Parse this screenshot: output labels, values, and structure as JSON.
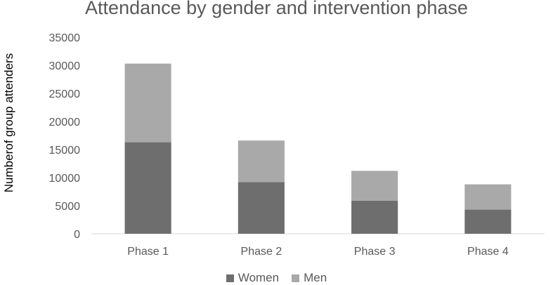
{
  "colors": {
    "women": "#6e6e6e",
    "men": "#a9a9a9",
    "axis": "#d9d9d9"
  },
  "chart_data": {
    "type": "bar",
    "stacked": true,
    "title": "Attendance by gender and intervention phase",
    "ylabel": "Numberof group attenders",
    "xlabel": "",
    "categories": [
      "Phase 1",
      "Phase 2",
      "Phase 3",
      "Phase 4"
    ],
    "series": [
      {
        "name": "Women",
        "values": [
          16300,
          9200,
          5900,
          4300
        ]
      },
      {
        "name": "Men",
        "values": [
          14000,
          7400,
          5300,
          4500
        ]
      }
    ],
    "ylim": [
      0,
      35000
    ],
    "yticks": [
      "0",
      "5000",
      "10000",
      "15000",
      "20000",
      "25000",
      "30000",
      "35000"
    ],
    "grid": false,
    "legend": "bottom"
  }
}
